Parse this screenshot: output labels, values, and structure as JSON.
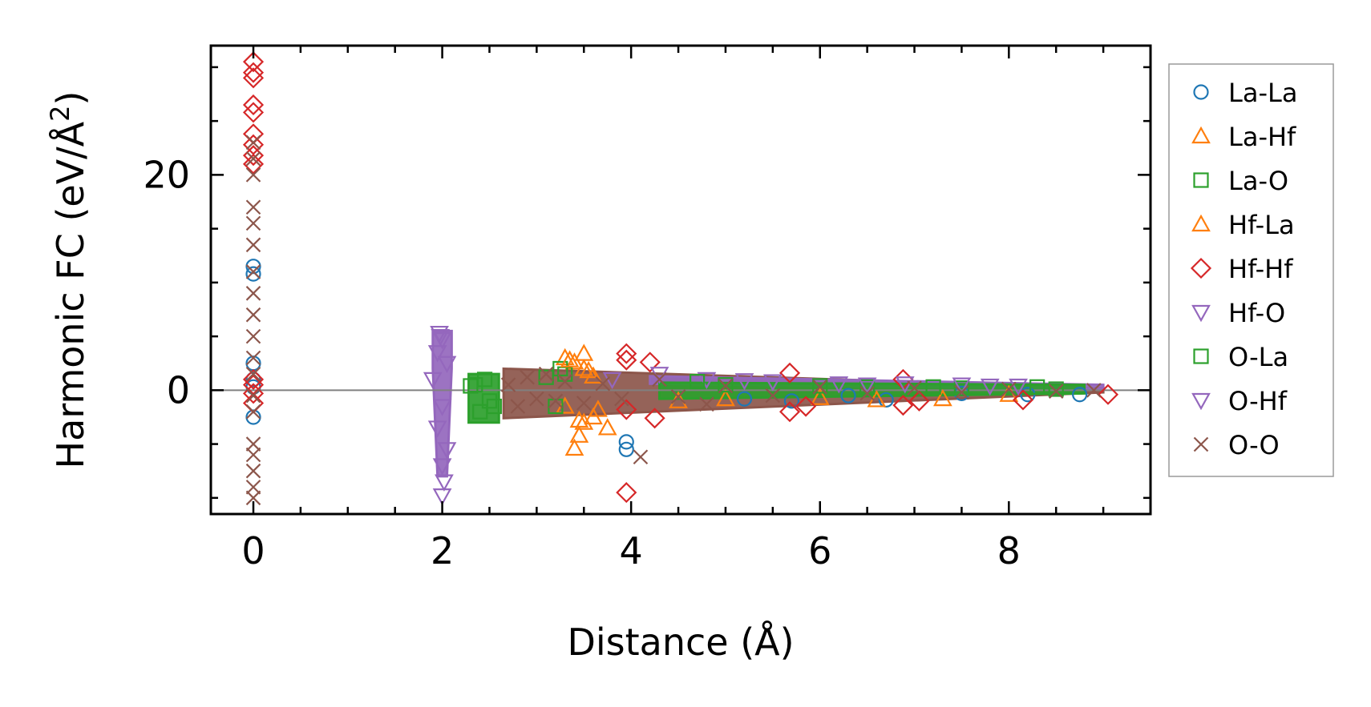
{
  "chart_data": {
    "type": "scatter",
    "title": "",
    "xlabel": "Distance (Å)",
    "ylabel": "Harmonic FC (eV/Å²)",
    "ylabel_parts": {
      "base": "Harmonic FC (eV/Å",
      "sup": "2",
      "close": ")"
    },
    "xlim": [
      -0.45,
      9.5
    ],
    "ylim": [
      -11.5,
      32
    ],
    "x_ticks": [
      0,
      2,
      4,
      6,
      8
    ],
    "x_tick_labels": [
      "0",
      "2",
      "4",
      "6",
      "8"
    ],
    "y_ticks": [
      0,
      20
    ],
    "y_tick_labels": [
      "0",
      "20"
    ],
    "zero_line": true,
    "legend_position": "outside-right",
    "series": [
      {
        "name": "La-La",
        "marker": "circle",
        "color": "#1f77b4",
        "points": [
          [
            0,
            11.5
          ],
          [
            0,
            10.8
          ],
          [
            0,
            2.5
          ],
          [
            0,
            1.0
          ],
          [
            0,
            -2.5
          ],
          [
            0,
            0.3
          ],
          [
            3.95,
            -4.8
          ],
          [
            3.95,
            -5.5
          ],
          [
            5.2,
            -0.8
          ],
          [
            5.7,
            -1.0
          ],
          [
            6.3,
            -0.5
          ],
          [
            6.7,
            -0.9
          ],
          [
            7.5,
            -0.3
          ],
          [
            8.2,
            -0.4
          ],
          [
            8.75,
            -0.4
          ]
        ]
      },
      {
        "name": "La-Hf",
        "marker": "triangle-up",
        "color": "#ff7f0e",
        "points": [
          [
            3.3,
            3.0
          ],
          [
            3.4,
            2.6
          ],
          [
            3.5,
            2.0
          ],
          [
            3.6,
            1.3
          ],
          [
            3.4,
            -5.4
          ],
          [
            3.5,
            -3.0
          ],
          [
            3.6,
            -2.5
          ],
          [
            3.75,
            -3.5
          ],
          [
            3.3,
            -1.5
          ],
          [
            4.5,
            -1.0
          ],
          [
            5.0,
            -0.8
          ],
          [
            6.0,
            -0.7
          ],
          [
            6.6,
            -0.9
          ],
          [
            7.3,
            -0.8
          ],
          [
            8.0,
            -0.4
          ]
        ]
      },
      {
        "name": "La-O",
        "marker": "square",
        "color": "#2ca02c",
        "points": [
          [
            2.35,
            0.5
          ],
          [
            2.4,
            -2.0
          ],
          [
            2.45,
            1.0
          ],
          [
            2.55,
            -1.5
          ],
          [
            3.25,
            2.0
          ],
          [
            3.3,
            1.5
          ],
          [
            3.2,
            -1.5
          ],
          [
            5.0,
            0.5
          ],
          [
            6.5,
            0.3
          ],
          [
            7.5,
            0.2
          ],
          [
            8.5,
            0.1
          ]
        ]
      },
      {
        "name": "Hf-La",
        "marker": "triangle-up",
        "color": "#ff7f0e",
        "points": [
          [
            3.35,
            2.8
          ],
          [
            3.45,
            -2.8
          ],
          [
            3.55,
            1.8
          ],
          [
            3.65,
            -1.8
          ],
          [
            3.5,
            3.4
          ],
          [
            3.45,
            -4.2
          ]
        ]
      },
      {
        "name": "Hf-Hf",
        "marker": "diamond",
        "color": "#d62728",
        "points": [
          [
            0,
            30.5
          ],
          [
            0,
            29.5
          ],
          [
            0,
            29.0
          ],
          [
            0,
            26.5
          ],
          [
            0,
            25.8
          ],
          [
            0,
            23.8
          ],
          [
            0,
            22.8
          ],
          [
            0,
            21.8
          ],
          [
            0,
            21.0
          ],
          [
            0,
            1.0
          ],
          [
            0,
            0.5
          ],
          [
            0,
            -0.3
          ],
          [
            0,
            -1.2
          ],
          [
            3.95,
            3.4
          ],
          [
            3.95,
            2.8
          ],
          [
            4.2,
            2.6
          ],
          [
            3.95,
            -1.8
          ],
          [
            3.95,
            -9.5
          ],
          [
            4.25,
            -2.6
          ],
          [
            5.68,
            1.6
          ],
          [
            5.68,
            -2.0
          ],
          [
            5.85,
            -1.5
          ],
          [
            6.88,
            1.0
          ],
          [
            6.88,
            -1.4
          ],
          [
            7.05,
            -1.0
          ],
          [
            8.15,
            -0.9
          ],
          [
            9.05,
            -0.4
          ]
        ]
      },
      {
        "name": "Hf-O",
        "marker": "triangle-down",
        "color": "#9467bd",
        "points": [
          [
            1.97,
            5.3
          ],
          [
            2.0,
            4.7
          ],
          [
            1.95,
            3.5
          ],
          [
            2.05,
            2.5
          ],
          [
            1.9,
            1.0
          ],
          [
            2.0,
            -1.5
          ],
          [
            1.95,
            -3.5
          ],
          [
            2.05,
            -5.5
          ],
          [
            2.0,
            -7.0
          ],
          [
            2.0,
            -9.8
          ],
          [
            4.3,
            1.5
          ],
          [
            4.8,
            1.0
          ],
          [
            5.5,
            0.8
          ],
          [
            6.2,
            0.6
          ],
          [
            6.9,
            0.6
          ],
          [
            7.5,
            0.5
          ],
          [
            8.1,
            0.4
          ]
        ]
      },
      {
        "name": "O-La",
        "marker": "square",
        "color": "#2ca02c",
        "points": [
          [
            2.3,
            0.4
          ],
          [
            2.5,
            -1.0
          ],
          [
            3.1,
            1.2
          ],
          [
            4.7,
            0.8
          ],
          [
            6.0,
            0.4
          ],
          [
            7.2,
            0.3
          ],
          [
            8.3,
            0.3
          ]
        ]
      },
      {
        "name": "O-Hf",
        "marker": "triangle-down",
        "color": "#9467bd",
        "points": [
          [
            1.98,
            5.0
          ],
          [
            2.02,
            -8.5
          ],
          [
            3.8,
            1.0
          ],
          [
            5.2,
            0.9
          ],
          [
            6.5,
            0.5
          ],
          [
            7.8,
            0.4
          ]
        ]
      },
      {
        "name": "O-O",
        "marker": "x",
        "color": "#8c564b",
        "points": [
          [
            0,
            23.0
          ],
          [
            0,
            21.5
          ],
          [
            0,
            20.0
          ],
          [
            0,
            17.0
          ],
          [
            0,
            15.5
          ],
          [
            0,
            13.5
          ],
          [
            0,
            11.0
          ],
          [
            0,
            9.0
          ],
          [
            0,
            7.0
          ],
          [
            0,
            5.0
          ],
          [
            0,
            3.0
          ],
          [
            0,
            1.5
          ],
          [
            0,
            -0.5
          ],
          [
            0,
            -2.0
          ],
          [
            0,
            -5.0
          ],
          [
            0,
            -6.0
          ],
          [
            0,
            -7.5
          ],
          [
            0,
            -9.0
          ],
          [
            0,
            -10.0
          ],
          [
            2.7,
            0.5
          ],
          [
            2.8,
            -1.5
          ],
          [
            2.9,
            1.2
          ],
          [
            3.0,
            -0.8
          ],
          [
            3.1,
            1.5
          ],
          [
            3.2,
            -1.0
          ],
          [
            3.3,
            0.8
          ],
          [
            3.5,
            -1.2
          ],
          [
            3.7,
            0.6
          ],
          [
            3.9,
            -0.8
          ],
          [
            4.1,
            -6.2
          ],
          [
            4.3,
            1.0
          ],
          [
            4.5,
            -0.6
          ],
          [
            4.8,
            -1.3
          ],
          [
            5.0,
            0.4
          ],
          [
            5.5,
            -0.5
          ],
          [
            6.0,
            0.3
          ],
          [
            6.5,
            -0.3
          ],
          [
            7.0,
            0.2
          ],
          [
            7.5,
            -0.2
          ],
          [
            8.0,
            0.1
          ],
          [
            8.5,
            -0.1
          ],
          [
            8.9,
            0.0
          ]
        ]
      }
    ],
    "bands": [
      {
        "series": "Hf-O",
        "color": "#9467bd",
        "outline": [
          [
            1.9,
            5.5
          ],
          [
            2.1,
            5.5
          ],
          [
            2.1,
            2.0
          ],
          [
            2.05,
            -8.0
          ],
          [
            1.95,
            -8.0
          ],
          [
            1.9,
            2.0
          ]
        ]
      },
      {
        "series": "La-O",
        "color": "#2ca02c",
        "outline": [
          [
            2.28,
            1.5
          ],
          [
            2.6,
            1.5
          ],
          [
            2.6,
            -3.0
          ],
          [
            2.28,
            -3.0
          ]
        ]
      },
      {
        "series": "O-O",
        "color": "#8c564b",
        "outline": [
          [
            2.65,
            2.0
          ],
          [
            9.0,
            0.2
          ],
          [
            9.0,
            -0.2
          ],
          [
            2.65,
            -2.6
          ]
        ]
      },
      {
        "series": "Hf-O",
        "color": "#9467bd",
        "outline": [
          [
            4.2,
            1.3
          ],
          [
            9.0,
            0.5
          ],
          [
            9.0,
            0.1
          ],
          [
            4.2,
            0.6
          ]
        ]
      },
      {
        "series": "La-O",
        "color": "#2ca02c",
        "outline": [
          [
            4.3,
            0.7
          ],
          [
            8.8,
            0.5
          ],
          [
            8.8,
            -0.3
          ],
          [
            4.3,
            -0.8
          ]
        ]
      }
    ]
  }
}
